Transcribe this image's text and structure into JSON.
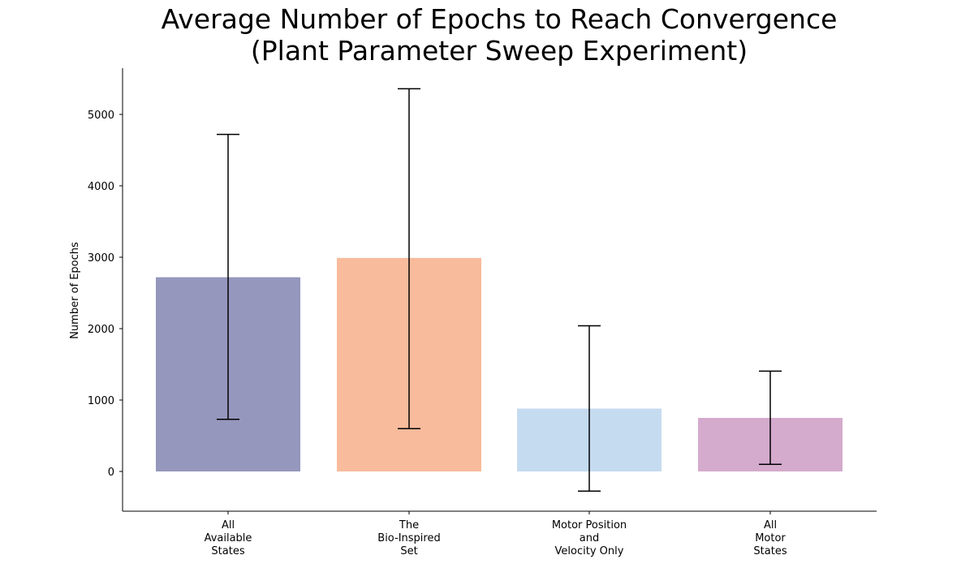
{
  "chart_data": {
    "type": "bar",
    "title_lines": [
      "Average Number of Epochs to Reach Convergence",
      "(Plant Parameter Sweep Experiment)"
    ],
    "ylabel": "Number of Epochs",
    "xlabel": "",
    "ylim": [
      -550,
      5650
    ],
    "yticks": [
      0,
      1000,
      2000,
      3000,
      4000,
      5000
    ],
    "grid": false,
    "categories": [
      [
        "All",
        "Available",
        "States"
      ],
      [
        "The",
        "Bio-Inspired",
        "Set"
      ],
      [
        "Motor Position",
        "and",
        "Velocity Only"
      ],
      [
        "All",
        "Motor",
        "States"
      ]
    ],
    "values": [
      2720,
      2990,
      880,
      750
    ],
    "error_low": [
      730,
      600,
      -275,
      100
    ],
    "error_high": [
      4720,
      5360,
      2040,
      1405
    ],
    "colors": [
      "#9697bd",
      "#f8bb9c",
      "#c5dbf0",
      "#d4aacd"
    ]
  }
}
